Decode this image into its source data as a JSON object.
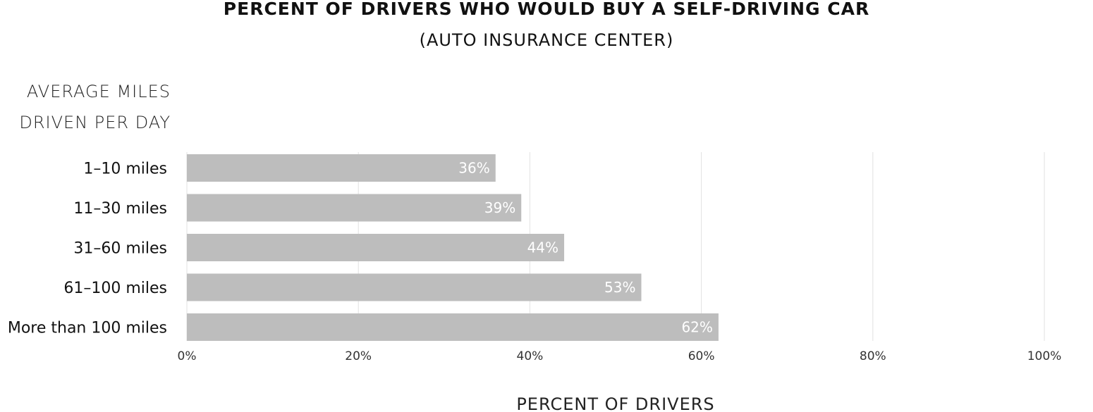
{
  "chart_data": {
    "type": "bar",
    "orientation": "horizontal",
    "title": "PERCENT OF DRIVERS WHO WOULD BUY A SELF-DRIVING CAR",
    "subtitle": "(AUTO INSURANCE CENTER)",
    "ylabel_lines": [
      "AVERAGE MILES",
      "DRIVEN PER DAY"
    ],
    "xlabel": "PERCENT OF DRIVERS",
    "categories": [
      "1–10 miles",
      "11–30 miles",
      "31–60 miles",
      "61–100 miles",
      "More than 100 miles"
    ],
    "values": [
      36,
      39,
      44,
      53,
      62
    ],
    "value_labels": [
      "36%",
      "39%",
      "44%",
      "53%",
      "62%"
    ],
    "xlim": [
      0,
      100
    ],
    "xticks": [
      0,
      20,
      40,
      60,
      80,
      100
    ],
    "xtick_labels": [
      "0%",
      "20%",
      "40%",
      "60%",
      "80%",
      "100%"
    ],
    "grid": "vertical",
    "bar_color": "#bdbdbd",
    "label_color": "#ffffff"
  }
}
